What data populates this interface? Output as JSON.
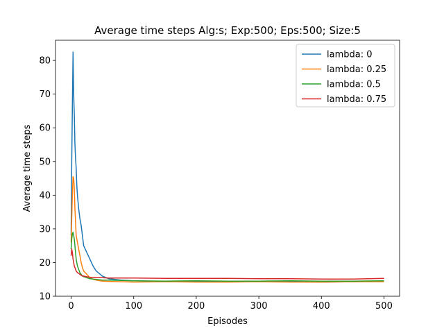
{
  "chart_data": {
    "type": "line",
    "title": "Average time steps Alg:s; Exp:500; Eps:500; Size:5",
    "xlabel": "Episodes",
    "ylabel": "Average time steps",
    "xlim": [
      -25,
      525
    ],
    "ylim": [
      10,
      86
    ],
    "xticks": [
      0,
      100,
      200,
      300,
      400,
      500
    ],
    "yticks": [
      10,
      20,
      30,
      40,
      50,
      60,
      70,
      80
    ],
    "grid": false,
    "legend_position": "top-right",
    "series": [
      {
        "name": "lambda: 0",
        "color": "#1f77b4",
        "x": [
          0,
          1,
          2,
          3,
          4,
          5,
          6,
          7,
          8,
          9,
          10,
          12,
          14,
          16,
          18,
          20,
          25,
          30,
          35,
          40,
          50,
          60,
          80,
          100,
          150,
          200,
          250,
          300,
          350,
          400,
          450,
          500
        ],
        "y": [
          28,
          50,
          66,
          82.5,
          70,
          64,
          55,
          51,
          48,
          43,
          40,
          36,
          33,
          31,
          28,
          25,
          23,
          21,
          19,
          17.5,
          16,
          15.2,
          14.8,
          14.6,
          14.4,
          14.3,
          14.3,
          14.4,
          14.3,
          14.2,
          14.3,
          14.5
        ]
      },
      {
        "name": "lambda: 0.25",
        "color": "#ff7f0e",
        "x": [
          0,
          1,
          2,
          3,
          4,
          5,
          6,
          7,
          8,
          10,
          12,
          14,
          16,
          18,
          20,
          25,
          30,
          35,
          40,
          50,
          60,
          80,
          100,
          150,
          200,
          250,
          300,
          350,
          400,
          450,
          500
        ],
        "y": [
          26,
          33,
          40,
          45.5,
          45,
          42,
          36,
          32,
          28,
          26,
          24,
          22,
          20,
          18.5,
          17.5,
          16.5,
          15.5,
          15,
          14.8,
          14.5,
          14.4,
          14.3,
          14.2,
          14.3,
          14.2,
          14.2,
          14.3,
          14.2,
          14.2,
          14.3,
          14.3
        ]
      },
      {
        "name": "lambda: 0.5",
        "color": "#2ca02c",
        "x": [
          0,
          1,
          2,
          3,
          4,
          5,
          6,
          7,
          8,
          10,
          12,
          14,
          16,
          18,
          20,
          25,
          30,
          40,
          50,
          60,
          80,
          100,
          150,
          200,
          250,
          300,
          350,
          400,
          450,
          500
        ],
        "y": [
          24,
          27,
          28.5,
          29,
          28,
          27,
          25,
          23,
          21,
          19,
          18,
          17,
          16.5,
          16,
          15.8,
          15.5,
          15.2,
          15,
          14.8,
          14.8,
          14.7,
          14.6,
          14.5,
          14.6,
          14.5,
          14.5,
          14.6,
          14.5,
          14.5,
          14.6
        ]
      },
      {
        "name": "lambda: 0.75",
        "color": "#d62728",
        "x": [
          0,
          1,
          2,
          3,
          4,
          5,
          6,
          7,
          8,
          10,
          12,
          14,
          16,
          18,
          20,
          25,
          30,
          40,
          50,
          60,
          80,
          100,
          150,
          200,
          250,
          300,
          350,
          400,
          450,
          500
        ],
        "y": [
          22,
          24,
          23,
          21,
          20,
          19,
          18.5,
          18,
          17.5,
          17,
          16.8,
          16.5,
          16.2,
          16,
          16,
          15.8,
          15.6,
          15.5,
          15.5,
          15.4,
          15.4,
          15.4,
          15.3,
          15.3,
          15.3,
          15.2,
          15.2,
          15.1,
          15.1,
          15.3
        ]
      }
    ]
  }
}
